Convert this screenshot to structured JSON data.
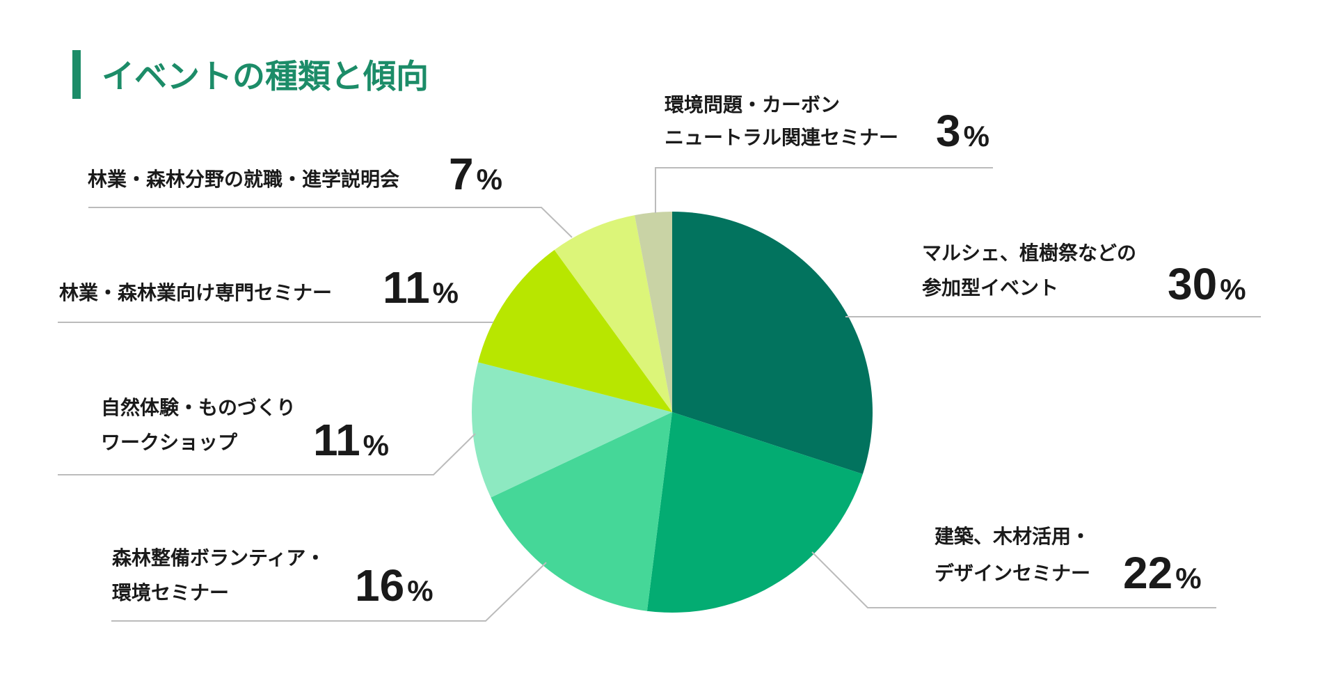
{
  "chart_data": {
    "type": "pie",
    "title": "イベントの種類と傾向",
    "start_angle_deg": 0,
    "direction": "clockwise",
    "percent_sign": "%",
    "slices": [
      {
        "label_lines": [
          "マルシェ、植樹祭などの",
          "参加型イベント"
        ],
        "value": 30,
        "value_text": "30",
        "color": "#02735E"
      },
      {
        "label_lines": [
          "建築、木材活用・",
          "デザインセミナー"
        ],
        "value": 22,
        "value_text": "22",
        "color": "#03AC72"
      },
      {
        "label_lines": [
          "森林整備ボランティア・",
          "環境セミナー"
        ],
        "value": 16,
        "value_text": "16",
        "color": "#45D798"
      },
      {
        "label_lines": [
          "自然体験・ものづくり",
          "ワークショップ"
        ],
        "value": 11,
        "value_text": "11",
        "color": "#8DE9C1"
      },
      {
        "label_lines": [
          "林業・森林業向け専門セミナー"
        ],
        "value": 11,
        "value_text": "11",
        "color": "#B8E600"
      },
      {
        "label_lines": [
          "林業・森林分野の就職・進学説明会"
        ],
        "value": 7,
        "value_text": "7",
        "color": "#DCF579"
      },
      {
        "label_lines": [
          "環境問題・カーボン",
          "ニュートラル関連セミナー"
        ],
        "value": 3,
        "value_text": "3",
        "color": "#C9D3A5"
      }
    ]
  },
  "colors": {
    "title_accent": "#1C8C68",
    "title_text": "#1C8C68",
    "label_text": "#1A1A1A",
    "leader_line": "#BBBBBB"
  }
}
